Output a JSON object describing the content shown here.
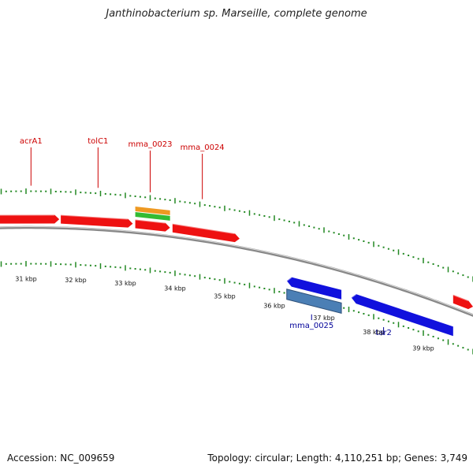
{
  "title": "Janthinobacterium sp. Marseille, complete genome",
  "footer": {
    "accession": "Accession: NC_009659",
    "summary": "Topology: circular; Length: 4,110,251 bp; Genes: 3,749"
  },
  "colors": {
    "forward_gene": "#ee1111",
    "reverse_gene": "#1111dd",
    "rrna": "#ee9922",
    "rrna_green": "#33bb33",
    "reverse_feature": "#4b7fb5",
    "backbone": "#888888",
    "tick": "#228822",
    "forward_label": "#cc0000",
    "reverse_label": "#000099"
  },
  "scale": {
    "unit": "kbp",
    "ticks": [
      {
        "pos": 31,
        "label": "31 kbp"
      },
      {
        "pos": 32,
        "label": "32 kbp"
      },
      {
        "pos": 33,
        "label": "33 kbp"
      },
      {
        "pos": 34,
        "label": "34 kbp"
      },
      {
        "pos": 35,
        "label": "35 kbp"
      },
      {
        "pos": 36,
        "label": "36 kbp"
      },
      {
        "pos": 37,
        "label": "37 kbp"
      },
      {
        "pos": 38,
        "label": "38 kbp"
      },
      {
        "pos": 39,
        "label": "39 kbp"
      }
    ]
  },
  "genes": {
    "forward": [
      {
        "start": 30.4,
        "end": 31.67
      },
      {
        "start": 31.7,
        "end": 33.15
      },
      {
        "start": 33.2,
        "end": 33.9
      },
      {
        "start": 33.95,
        "end": 35.3
      },
      {
        "start": 39.6,
        "end": 40.0
      }
    ],
    "rrna": [
      {
        "start": 33.2,
        "end": 33.9
      }
    ],
    "reverse": [
      {
        "start": 36.25,
        "end": 37.35
      },
      {
        "start": 37.55,
        "end": 39.6
      }
    ],
    "reverse_feature": [
      {
        "start": 36.25,
        "end": 37.35
      }
    ]
  },
  "labels": {
    "forward": [
      {
        "text": "acrA1",
        "pos": 31.1
      },
      {
        "text": "tolC1",
        "pos": 32.45
      },
      {
        "text": "mma_0023",
        "pos": 33.5
      },
      {
        "text": "mma_0024",
        "pos": 34.55
      }
    ],
    "reverse": [
      {
        "text": "mma_0025",
        "pos": 36.75
      },
      {
        "text": "tar2",
        "pos": 38.2
      }
    ]
  }
}
